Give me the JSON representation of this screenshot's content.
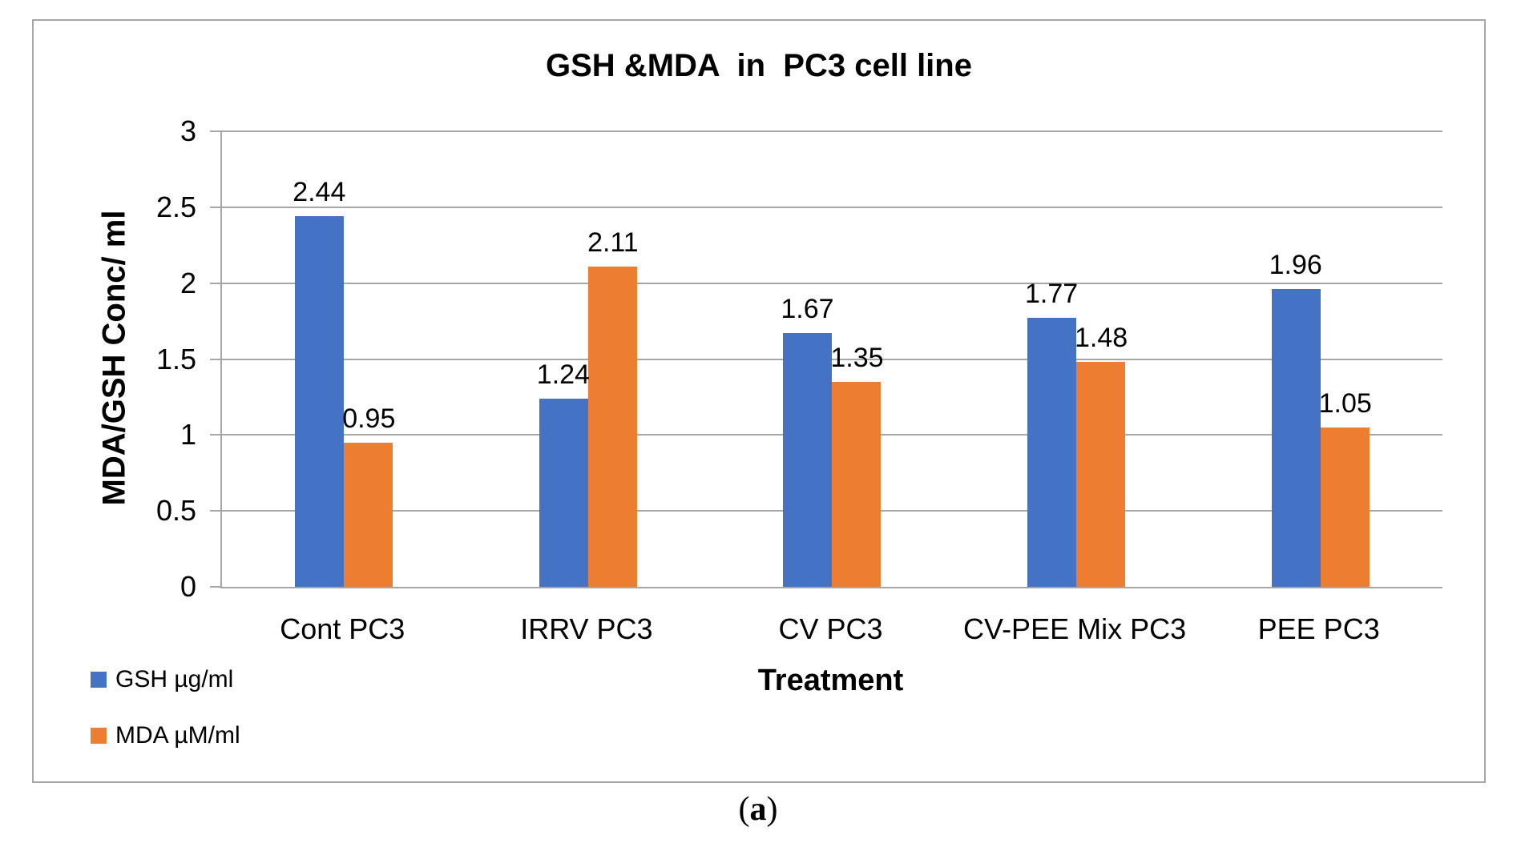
{
  "figure": {
    "caption": {
      "open": "(",
      "letter": "a",
      "close": ")"
    }
  },
  "chart_data": {
    "type": "bar",
    "title": "GSH &MDA  in  PC3 cell line",
    "xlabel": "Treatment",
    "ylabel": "MDA/GSH Conc/ ml",
    "categories": [
      "Cont PC3",
      "IRRV PC3",
      "CV PC3",
      "CV-PEE Mix PC3",
      "PEE PC3"
    ],
    "series": [
      {
        "name": "GSH µg/ml",
        "color": "#4472C4",
        "values": [
          2.44,
          1.24,
          1.67,
          1.77,
          1.96
        ]
      },
      {
        "name": "MDA µM/ml",
        "color": "#ED7D31",
        "values": [
          0.95,
          2.11,
          1.35,
          1.48,
          1.05
        ]
      }
    ],
    "ylim": [
      0,
      3
    ],
    "ytick_step": 0.5,
    "grid": true,
    "gridline_color": "#a6a6a6",
    "legend_position": "bottom-left"
  }
}
